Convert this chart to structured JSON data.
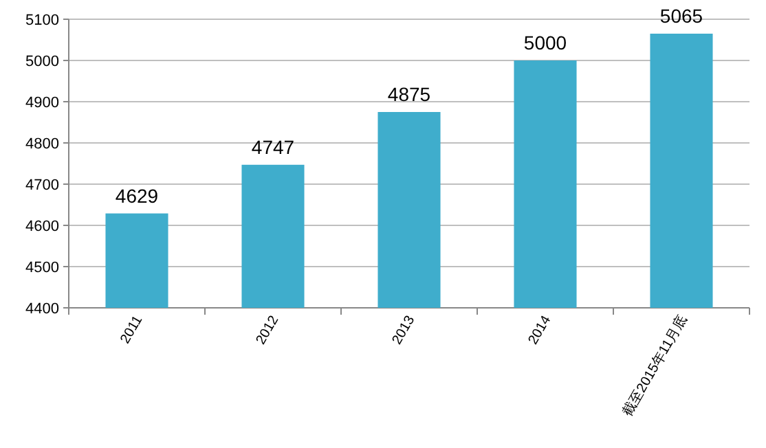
{
  "chart_data": {
    "type": "bar",
    "categories": [
      "2011",
      "2012",
      "2013",
      "2014",
      "截至2015年11月底"
    ],
    "values": [
      4629,
      4747,
      4875,
      5000,
      5065
    ],
    "color": "#3fadcc",
    "ylim": [
      4400,
      5100
    ],
    "yticks": [
      4400,
      4500,
      4600,
      4700,
      4800,
      4900,
      5000,
      5100
    ],
    "grid": "y",
    "data_labels": true
  }
}
